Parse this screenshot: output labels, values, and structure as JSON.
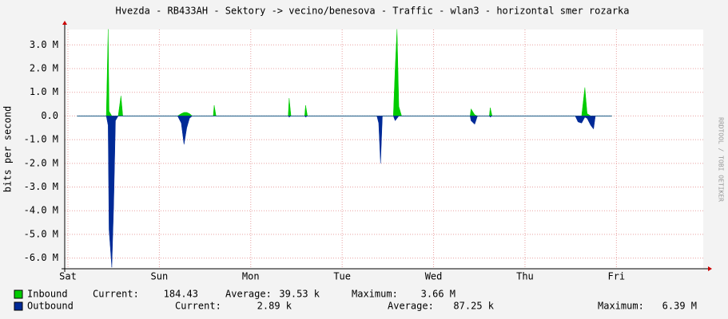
{
  "chart_data": {
    "type": "area",
    "title": "Hvezda - RB433AH - Sektory -> vecino/benesova - Traffic - wlan3 - horizontal smer rozarka",
    "y_label": "bits per second",
    "watermark": "RRDTOOL / TOBI OETIKER",
    "x": [
      0.1,
      0.42,
      0.44,
      0.45,
      0.48,
      0.5,
      0.52,
      0.55,
      0.58,
      0.6,
      1.2,
      1.24,
      1.27,
      1.3,
      1.33,
      1.36,
      1.59,
      1.6,
      1.62,
      2.41,
      2.42,
      2.44,
      2.59,
      2.6,
      2.62,
      3.38,
      3.4,
      3.42,
      3.44,
      3.56,
      3.58,
      3.6,
      3.62,
      3.65,
      4.4,
      4.41,
      4.45,
      4.48,
      4.61,
      4.62,
      4.64,
      5.55,
      5.58,
      5.62,
      5.655,
      5.68,
      5.72,
      5.75,
      5.77,
      5.95
    ],
    "series": [
      {
        "name": "Inbound",
        "color": "#00cc00",
        "values": [
          0,
          0,
          3660000,
          200000,
          0,
          0,
          0,
          0,
          850000,
          0,
          0,
          100000,
          150000,
          150000,
          100000,
          0,
          0,
          450000,
          0,
          0,
          750000,
          0,
          0,
          450000,
          0,
          0,
          0,
          0,
          0,
          0,
          2000000,
          3660000,
          400000,
          0,
          0,
          300000,
          50000,
          0,
          0,
          350000,
          0,
          0,
          0,
          0,
          1200000,
          100000,
          0,
          0,
          0,
          0
        ],
        "legend": [
          "Current:",
          "184.43",
          "Average:",
          "39.53 k",
          "Maximum:",
          "3.66 M"
        ]
      },
      {
        "name": "Outbound",
        "color": "#002a97",
        "values": [
          0,
          0,
          -400000,
          -4800000,
          -6390000,
          -3800000,
          -200000,
          0,
          0,
          0,
          0,
          -300000,
          -1200000,
          -500000,
          -100000,
          0,
          0,
          0,
          0,
          0,
          -50000,
          0,
          0,
          -50000,
          0,
          0,
          -300000,
          -2000000,
          0,
          0,
          -200000,
          -100000,
          0,
          0,
          0,
          -200000,
          -350000,
          0,
          0,
          -50000,
          0,
          0,
          -250000,
          -300000,
          -50000,
          -100000,
          -400000,
          -550000,
          0,
          0
        ],
        "legend": [
          "Current:",
          "2.89 k",
          "Average:",
          "87.25 k",
          "Maximum:",
          "6.39 M"
        ]
      }
    ],
    "xlim": [
      -0.035,
      6.95
    ],
    "xticks": [
      {
        "value": 0,
        "label": "Sat"
      },
      {
        "value": 1,
        "label": "Sun"
      },
      {
        "value": 2,
        "label": "Mon"
      },
      {
        "value": 3,
        "label": "Tue"
      },
      {
        "value": 4,
        "label": "Wed"
      },
      {
        "value": 5,
        "label": "Thu"
      },
      {
        "value": 6,
        "label": "Fri"
      }
    ],
    "ylim": [
      -6450000,
      3650000
    ],
    "yticks": [
      {
        "value": 3000000,
        "label": "3.0 M"
      },
      {
        "value": 2000000,
        "label": "2.0 M"
      },
      {
        "value": 1000000,
        "label": "1.0 M"
      },
      {
        "value": 0,
        "label": "0.0"
      },
      {
        "value": -1000000,
        "label": "-1.0 M"
      },
      {
        "value": -2000000,
        "label": "-2.0 M"
      },
      {
        "value": -3000000,
        "label": "-3.0 M"
      },
      {
        "value": -4000000,
        "label": "-4.0 M"
      },
      {
        "value": -5000000,
        "label": "-5.0 M"
      },
      {
        "value": -6000000,
        "label": "-6.0 M"
      }
    ],
    "grid": true
  }
}
